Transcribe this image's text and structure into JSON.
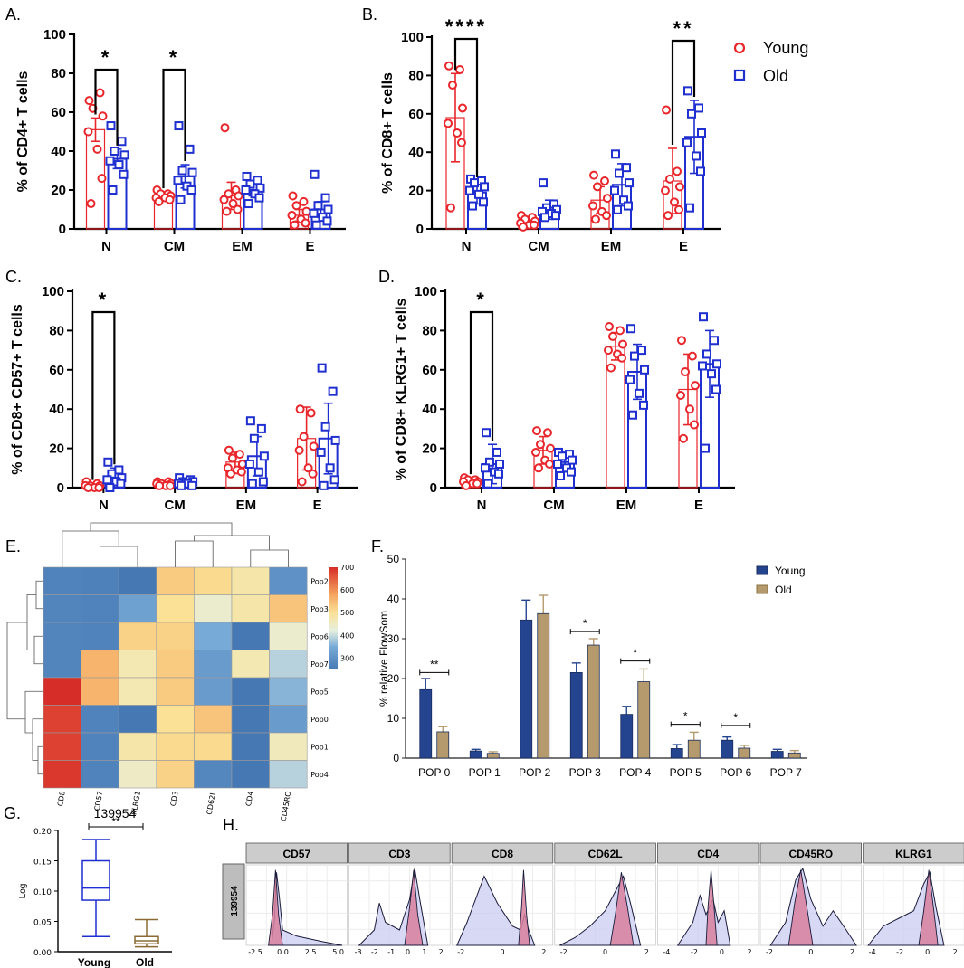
{
  "panel_labels": {
    "A": "A.",
    "B": "B.",
    "C": "C.",
    "D": "D.",
    "E": "E.",
    "F": "F.",
    "G": "G.",
    "H": "H."
  },
  "legend_top": {
    "young": "Young",
    "old": "Old"
  },
  "colors": {
    "young": "#e8262b",
    "old": "#1f2fd0",
    "navy": "#24448f",
    "tan": "#b49a6c",
    "boxOld": "#8a6a32",
    "pink": "#d8809e",
    "lav": "#c9ccf2"
  },
  "chart_data": [
    {
      "id": "A",
      "type": "bar",
      "ylabel": "% of CD4+ T cells",
      "ylim": [
        0,
        100
      ],
      "yticks": [
        0,
        20,
        40,
        60,
        80,
        100
      ],
      "categories": [
        "N",
        "CM",
        "EM",
        "E"
      ],
      "series": [
        {
          "name": "Young",
          "values": [
            51,
            17,
            17,
            7
          ],
          "sem": [
            6,
            2,
            7,
            3
          ],
          "points": [
            [
              66,
              70,
              62,
              58,
              50,
              41,
              26,
              13
            ],
            [
              20,
              18,
              18,
              17,
              16,
              16,
              15,
              14
            ],
            [
              52,
              20,
              18,
              17,
              15,
              13,
              10,
              9
            ],
            [
              17,
              14,
              12,
              9,
              7,
              5,
              3,
              2
            ]
          ]
        },
        {
          "name": "Old",
          "values": [
            36,
            27,
            20,
            10
          ],
          "sem": [
            5,
            6,
            3,
            4
          ],
          "points": [
            [
              53,
              45,
              40,
              38,
              35,
              33,
              28,
              20
            ],
            [
              53,
              41,
              30,
              29,
              25,
              22,
              20,
              15
            ],
            [
              27,
              25,
              23,
              21,
              20,
              18,
              16,
              13
            ],
            [
              28,
              16,
              12,
              10,
              8,
              6,
              4,
              2
            ]
          ]
        }
      ],
      "significance": [
        {
          "category": "N",
          "label": "*"
        },
        {
          "category": "CM",
          "label": "*"
        }
      ]
    },
    {
      "id": "B",
      "type": "bar",
      "ylabel": "% of CD8+ T cells",
      "ylim": [
        0,
        100
      ],
      "yticks": [
        0,
        20,
        40,
        60,
        80,
        100
      ],
      "categories": [
        "N",
        "CM",
        "EM",
        "E"
      ],
      "series": [
        {
          "name": "Young",
          "values": [
            58,
            4,
            15,
            25
          ],
          "sem": [
            23,
            2,
            7,
            17
          ],
          "points": [
            [
              85,
              83,
              75,
              63,
              55,
              50,
              45,
              11
            ],
            [
              7,
              6,
              5,
              4,
              3,
              2,
              2,
              1
            ],
            [
              28,
              25,
              22,
              16,
              12,
              9,
              7,
              5
            ],
            [
              62,
              30,
              26,
              22,
              20,
              14,
              10,
              7
            ]
          ]
        },
        {
          "name": "Old",
          "values": [
            19,
            10,
            23,
            48
          ],
          "sem": [
            6,
            5,
            11,
            19
          ],
          "points": [
            [
              26,
              25,
              24,
              22,
              20,
              18,
              14,
              12
            ],
            [
              24,
              13,
              11,
              10,
              9,
              8,
              7,
              6
            ],
            [
              39,
              32,
              29,
              24,
              20,
              15,
              12,
              10
            ],
            [
              72,
              63,
              60,
              50,
              45,
              38,
              30,
              11
            ]
          ]
        }
      ],
      "significance": [
        {
          "category": "N",
          "label": "****"
        },
        {
          "category": "E",
          "label": "**"
        }
      ]
    },
    {
      "id": "C",
      "type": "bar",
      "ylabel": "% of CD8+ CD57+ T cells",
      "ylim": [
        0,
        100
      ],
      "yticks": [
        0,
        20,
        40,
        60,
        80,
        100
      ],
      "categories": [
        "N",
        "CM",
        "EM",
        "E"
      ],
      "series": [
        {
          "name": "Young",
          "values": [
            1,
            2,
            13,
            25
          ],
          "sem": [
            1,
            1,
            5,
            16
          ],
          "points": [
            [
              3,
              2,
              1,
              1,
              1,
              0,
              0,
              0
            ],
            [
              3,
              3,
              2,
              2,
              2,
              1,
              1,
              1
            ],
            [
              19,
              17,
              15,
              12,
              10,
              9,
              8,
              7
            ],
            [
              40,
              38,
              26,
              21,
              19,
              10,
              7,
              3
            ]
          ]
        },
        {
          "name": "Old",
          "values": [
            5,
            2,
            16,
            25
          ],
          "sem": [
            5,
            2,
            10,
            18
          ],
          "points": [
            [
              13,
              9,
              7,
              5,
              4,
              3,
              2,
              0
            ],
            [
              5,
              4,
              3,
              3,
              2,
              2,
              1,
              1
            ],
            [
              34,
              30,
              25,
              16,
              12,
              8,
              3,
              2
            ],
            [
              61,
              49,
              31,
              24,
              18,
              10,
              4,
              1
            ]
          ]
        }
      ],
      "significance": [
        {
          "category": "N",
          "label": "*"
        }
      ]
    },
    {
      "id": "D",
      "type": "bar",
      "ylabel": "% of CD8+ KLRG1+ T cells",
      "ylim": [
        0,
        100
      ],
      "yticks": [
        0,
        20,
        40,
        60,
        80,
        100
      ],
      "categories": [
        "N",
        "CM",
        "EM",
        "E"
      ],
      "series": [
        {
          "name": "Young",
          "values": [
            3,
            19,
            72,
            50
          ],
          "sem": [
            2,
            7,
            7,
            18
          ],
          "points": [
            [
              5,
              4,
              4,
              3,
              3,
              2,
              2,
              1
            ],
            [
              29,
              28,
              22,
              20,
              18,
              14,
              12,
              10
            ],
            [
              82,
              80,
              77,
              73,
              70,
              68,
              66,
              61
            ],
            [
              75,
              67,
              59,
              52,
              47,
              40,
              32,
              25
            ]
          ]
        },
        {
          "name": "Old",
          "values": [
            12,
            13,
            59,
            63
          ],
          "sem": [
            10,
            5,
            14,
            17
          ],
          "points": [
            [
              28,
              18,
              13,
              12,
              10,
              8,
              7,
              2
            ],
            [
              18,
              17,
              16,
              14,
              12,
              10,
              8,
              6
            ],
            [
              81,
              70,
              67,
              60,
              55,
              48,
              42,
              37
            ],
            [
              87,
              75,
              68,
              63,
              62,
              58,
              50,
              20
            ]
          ]
        }
      ],
      "significance": [
        {
          "category": "N",
          "label": "*"
        }
      ]
    },
    {
      "id": "E",
      "type": "heatmap",
      "columns": [
        "CD8",
        "CD57",
        "KLRG1",
        "CD3",
        "CD62L",
        "CD4",
        "CD45RO"
      ],
      "rows": [
        "Pop2",
        "Pop3",
        "Pop6",
        "Pop7",
        "Pop5",
        "Pop0",
        "Pop1",
        "Pop4"
      ],
      "values": [
        [
          270,
          265,
          230,
          530,
          510,
          480,
          300
        ],
        [
          275,
          270,
          330,
          500,
          440,
          480,
          540
        ],
        [
          275,
          270,
          520,
          520,
          350,
          250,
          440
        ],
        [
          275,
          560,
          470,
          530,
          320,
          470,
          390
        ],
        [
          700,
          560,
          470,
          530,
          320,
          250,
          360
        ],
        [
          680,
          270,
          240,
          500,
          540,
          250,
          320
        ],
        [
          680,
          270,
          480,
          510,
          510,
          250,
          460
        ],
        [
          690,
          270,
          450,
          520,
          280,
          250,
          390
        ]
      ],
      "colorbar": {
        "min": 250,
        "max": 700,
        "ticks": [
          300,
          400,
          500,
          600,
          700
        ]
      }
    },
    {
      "id": "F",
      "type": "bar",
      "ylabel": "% relative FlowSom",
      "ylim": [
        0,
        50
      ],
      "yticks": [
        0,
        10,
        20,
        30,
        40,
        50
      ],
      "categories": [
        "POP 0",
        "POP 1",
        "POP 2",
        "POP 3",
        "POP 4",
        "POP 5",
        "POP 6",
        "POP 7"
      ],
      "series": [
        {
          "name": "Young",
          "values": [
            17.2,
            1.8,
            34.7,
            21.5,
            11.0,
            2.4,
            4.5,
            1.7
          ],
          "err": [
            2.8,
            0.4,
            5.0,
            2.4,
            2.0,
            1.0,
            0.8,
            0.5
          ]
        },
        {
          "name": "Old",
          "values": [
            6.6,
            1.2,
            36.3,
            28.4,
            19.2,
            4.5,
            2.5,
            1.3
          ],
          "err": [
            1.3,
            0.4,
            4.6,
            1.6,
            3.2,
            2.0,
            0.7,
            0.6
          ]
        }
      ],
      "significance": [
        {
          "category": "POP 0",
          "label": "**"
        },
        {
          "category": "POP 3",
          "label": "*"
        },
        {
          "category": "POP 4",
          "label": "*"
        },
        {
          "category": "POP 5",
          "label": "*"
        },
        {
          "category": "POP 6",
          "label": "*"
        }
      ]
    },
    {
      "id": "G",
      "type": "box",
      "title": "139954",
      "ylabel": "Log",
      "ylim": [
        0,
        0.2
      ],
      "yticks": [
        "0.00",
        "0.05",
        "0.10",
        "0.15",
        "0.20"
      ],
      "categories": [
        "Young",
        "Old"
      ],
      "boxes": [
        {
          "name": "Young",
          "min": 0.025,
          "q1": 0.085,
          "median": 0.105,
          "q3": 0.15,
          "max": 0.185
        },
        {
          "name": "Old",
          "min": 0.008,
          "q1": 0.013,
          "median": 0.018,
          "q3": 0.025,
          "max": 0.053
        }
      ],
      "significance": "**"
    },
    {
      "id": "H",
      "type": "area",
      "row_label": "139954",
      "panels": [
        {
          "marker": "CD57",
          "ticks": [
            "-2.5",
            "0.0",
            "2.5",
            "5.0"
          ]
        },
        {
          "marker": "CD3",
          "ticks": [
            "-3",
            "-2",
            "-1",
            "0",
            "1",
            "2"
          ]
        },
        {
          "marker": "CD8",
          "ticks": [
            "-2",
            "0",
            "2"
          ]
        },
        {
          "marker": "CD62L",
          "ticks": [
            "-2",
            "0",
            "2"
          ]
        },
        {
          "marker": "CD4",
          "ticks": [
            "-4",
            "-2",
            "0",
            "2"
          ]
        },
        {
          "marker": "CD45RO",
          "ticks": [
            "-2",
            "0",
            "2"
          ]
        },
        {
          "marker": "KLRG1",
          "ticks": [
            "-4",
            "-2",
            "0",
            "2"
          ]
        }
      ]
    }
  ]
}
